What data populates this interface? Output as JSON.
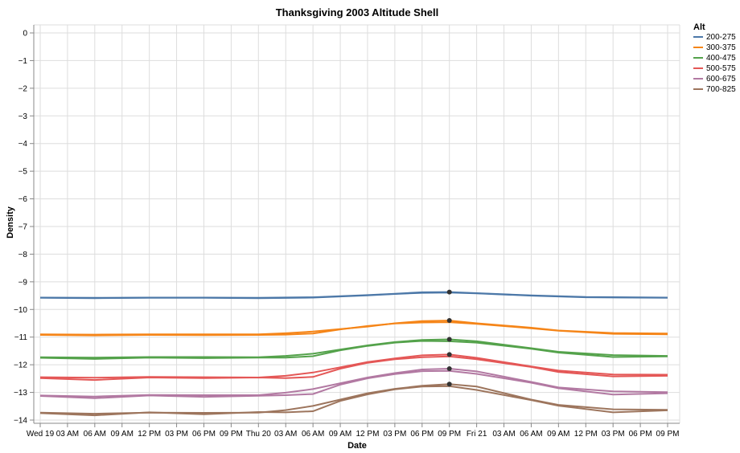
{
  "chart_data": {
    "type": "line",
    "title": "Thanksgiving 2003 Altitude Shell",
    "xlabel": "Date",
    "ylabel": "Density",
    "ylim": [
      -14,
      0
    ],
    "yticks": [
      0,
      -1,
      -2,
      -3,
      -4,
      -5,
      -6,
      -7,
      -8,
      -9,
      -10,
      -11,
      -12,
      -13,
      -14
    ],
    "xlim": [
      "2003-11-19 00:00",
      "2003-11-21 21:00"
    ],
    "xticks": [
      {
        "t": "2003-11-19 00:00",
        "label": "Wed 19"
      },
      {
        "t": "2003-11-19 03:00",
        "label": "03 AM"
      },
      {
        "t": "2003-11-19 06:00",
        "label": "06 AM"
      },
      {
        "t": "2003-11-19 09:00",
        "label": "09 AM"
      },
      {
        "t": "2003-11-19 12:00",
        "label": "12 PM"
      },
      {
        "t": "2003-11-19 15:00",
        "label": "03 PM"
      },
      {
        "t": "2003-11-19 18:00",
        "label": "06 PM"
      },
      {
        "t": "2003-11-19 21:00",
        "label": "09 PM"
      },
      {
        "t": "2003-11-20 00:00",
        "label": "Thu 20"
      },
      {
        "t": "2003-11-20 03:00",
        "label": "03 AM"
      },
      {
        "t": "2003-11-20 06:00",
        "label": "06 AM"
      },
      {
        "t": "2003-11-20 09:00",
        "label": "09 AM"
      },
      {
        "t": "2003-11-20 12:00",
        "label": "12 PM"
      },
      {
        "t": "2003-11-20 15:00",
        "label": "03 PM"
      },
      {
        "t": "2003-11-20 18:00",
        "label": "06 PM"
      },
      {
        "t": "2003-11-20 21:00",
        "label": "09 PM"
      },
      {
        "t": "2003-11-21 00:00",
        "label": "Fri 21"
      },
      {
        "t": "2003-11-21 03:00",
        "label": "03 AM"
      },
      {
        "t": "2003-11-21 06:00",
        "label": "06 AM"
      },
      {
        "t": "2003-11-21 09:00",
        "label": "09 AM"
      },
      {
        "t": "2003-11-21 12:00",
        "label": "12 PM"
      },
      {
        "t": "2003-11-21 15:00",
        "label": "03 PM"
      },
      {
        "t": "2003-11-21 18:00",
        "label": "06 PM"
      },
      {
        "t": "2003-11-21 21:00",
        "label": "09 PM"
      }
    ],
    "grid": true,
    "legend": {
      "title": "Alt",
      "placement": "top-right"
    },
    "highlight_time": "2003-11-20 21:00",
    "series": [
      {
        "name": "200-275",
        "color": "#4c78a8",
        "lines": [
          [
            [
              "2003-11-19 00:00",
              -9.57
            ],
            [
              "2003-11-19 06:00",
              -9.58
            ],
            [
              "2003-11-19 12:00",
              -9.57
            ],
            [
              "2003-11-19 18:00",
              -9.57
            ],
            [
              "2003-11-20 00:00",
              -9.58
            ],
            [
              "2003-11-20 06:00",
              -9.56
            ],
            [
              "2003-11-20 12:00",
              -9.48
            ],
            [
              "2003-11-20 15:00",
              -9.43
            ],
            [
              "2003-11-20 18:00",
              -9.38
            ],
            [
              "2003-11-20 21:00",
              -9.37
            ],
            [
              "2003-11-21 00:00",
              -9.41
            ],
            [
              "2003-11-21 06:00",
              -9.49
            ],
            [
              "2003-11-21 12:00",
              -9.55
            ],
            [
              "2003-11-21 21:00",
              -9.57
            ]
          ],
          [
            [
              "2003-11-19 00:00",
              -9.58
            ],
            [
              "2003-11-19 06:00",
              -9.59
            ],
            [
              "2003-11-19 12:00",
              -9.58
            ],
            [
              "2003-11-19 18:00",
              -9.58
            ],
            [
              "2003-11-20 00:00",
              -9.59
            ],
            [
              "2003-11-20 06:00",
              -9.57
            ],
            [
              "2003-11-20 12:00",
              -9.49
            ],
            [
              "2003-11-20 15:00",
              -9.44
            ],
            [
              "2003-11-20 18:00",
              -9.4
            ],
            [
              "2003-11-20 21:00",
              -9.39
            ],
            [
              "2003-11-21 00:00",
              -9.42
            ],
            [
              "2003-11-21 06:00",
              -9.5
            ],
            [
              "2003-11-21 12:00",
              -9.56
            ],
            [
              "2003-11-21 21:00",
              -9.58
            ]
          ]
        ],
        "highlight": -9.37
      },
      {
        "name": "300-375",
        "color": "#f58518",
        "lines": [
          [
            [
              "2003-11-19 00:00",
              -10.9
            ],
            [
              "2003-11-19 06:00",
              -10.91
            ],
            [
              "2003-11-19 12:00",
              -10.9
            ],
            [
              "2003-11-19 18:00",
              -10.9
            ],
            [
              "2003-11-20 00:00",
              -10.9
            ],
            [
              "2003-11-20 03:00",
              -10.86
            ],
            [
              "2003-11-20 06:00",
              -10.8
            ],
            [
              "2003-11-20 12:00",
              -10.62
            ],
            [
              "2003-11-20 15:00",
              -10.5
            ],
            [
              "2003-11-20 18:00",
              -10.42
            ],
            [
              "2003-11-20 21:00",
              -10.4
            ],
            [
              "2003-11-21 00:00",
              -10.5
            ],
            [
              "2003-11-21 06:00",
              -10.66
            ],
            [
              "2003-11-21 09:00",
              -10.76
            ],
            [
              "2003-11-21 15:00",
              -10.85
            ],
            [
              "2003-11-21 21:00",
              -10.87
            ]
          ],
          [
            [
              "2003-11-19 00:00",
              -10.92
            ],
            [
              "2003-11-19 06:00",
              -10.94
            ],
            [
              "2003-11-19 12:00",
              -10.92
            ],
            [
              "2003-11-19 18:00",
              -10.93
            ],
            [
              "2003-11-20 00:00",
              -10.92
            ],
            [
              "2003-11-20 03:00",
              -10.91
            ],
            [
              "2003-11-20 06:00",
              -10.87
            ],
            [
              "2003-11-20 09:00",
              -10.72
            ],
            [
              "2003-11-20 12:00",
              -10.6
            ],
            [
              "2003-11-20 15:00",
              -10.51
            ],
            [
              "2003-11-20 18:00",
              -10.47
            ],
            [
              "2003-11-20 21:00",
              -10.46
            ],
            [
              "2003-11-21 00:00",
              -10.52
            ],
            [
              "2003-11-21 06:00",
              -10.68
            ],
            [
              "2003-11-21 09:00",
              -10.77
            ],
            [
              "2003-11-21 15:00",
              -10.88
            ],
            [
              "2003-11-21 21:00",
              -10.9
            ]
          ]
        ],
        "highlight": -10.4
      },
      {
        "name": "400-475",
        "color": "#54a24b",
        "lines": [
          [
            [
              "2003-11-19 00:00",
              -11.73
            ],
            [
              "2003-11-19 06:00",
              -11.74
            ],
            [
              "2003-11-19 12:00",
              -11.72
            ],
            [
              "2003-11-19 18:00",
              -11.72
            ],
            [
              "2003-11-20 00:00",
              -11.73
            ],
            [
              "2003-11-20 03:00",
              -11.68
            ],
            [
              "2003-11-20 06:00",
              -11.6
            ],
            [
              "2003-11-20 12:00",
              -11.3
            ],
            [
              "2003-11-20 15:00",
              -11.18
            ],
            [
              "2003-11-20 18:00",
              -11.1
            ],
            [
              "2003-11-20 21:00",
              -11.08
            ],
            [
              "2003-11-21 00:00",
              -11.15
            ],
            [
              "2003-11-21 06:00",
              -11.4
            ],
            [
              "2003-11-21 09:00",
              -11.53
            ],
            [
              "2003-11-21 15:00",
              -11.65
            ],
            [
              "2003-11-21 21:00",
              -11.68
            ]
          ],
          [
            [
              "2003-11-19 00:00",
              -11.75
            ],
            [
              "2003-11-19 06:00",
              -11.79
            ],
            [
              "2003-11-19 12:00",
              -11.74
            ],
            [
              "2003-11-19 18:00",
              -11.76
            ],
            [
              "2003-11-20 00:00",
              -11.74
            ],
            [
              "2003-11-20 03:00",
              -11.74
            ],
            [
              "2003-11-20 06:00",
              -11.69
            ],
            [
              "2003-11-20 09:00",
              -11.48
            ],
            [
              "2003-11-20 12:00",
              -11.32
            ],
            [
              "2003-11-20 15:00",
              -11.2
            ],
            [
              "2003-11-20 18:00",
              -11.14
            ],
            [
              "2003-11-20 21:00",
              -11.15
            ],
            [
              "2003-11-21 00:00",
              -11.2
            ],
            [
              "2003-11-21 06:00",
              -11.42
            ],
            [
              "2003-11-21 09:00",
              -11.56
            ],
            [
              "2003-11-21 15:00",
              -11.72
            ],
            [
              "2003-11-21 21:00",
              -11.7
            ]
          ]
        ],
        "highlight": -11.08
      },
      {
        "name": "500-575",
        "color": "#e45756",
        "lines": [
          [
            [
              "2003-11-19 00:00",
              -12.45
            ],
            [
              "2003-11-19 06:00",
              -12.47
            ],
            [
              "2003-11-19 12:00",
              -12.44
            ],
            [
              "2003-11-19 18:00",
              -12.45
            ],
            [
              "2003-11-20 00:00",
              -12.46
            ],
            [
              "2003-11-20 03:00",
              -12.4
            ],
            [
              "2003-11-20 06:00",
              -12.28
            ],
            [
              "2003-11-20 12:00",
              -11.9
            ],
            [
              "2003-11-20 15:00",
              -11.77
            ],
            [
              "2003-11-20 18:00",
              -11.66
            ],
            [
              "2003-11-20 21:00",
              -11.63
            ],
            [
              "2003-11-21 00:00",
              -11.75
            ],
            [
              "2003-11-21 06:00",
              -12.06
            ],
            [
              "2003-11-21 09:00",
              -12.21
            ],
            [
              "2003-11-21 15:00",
              -12.35
            ],
            [
              "2003-11-21 21:00",
              -12.36
            ]
          ],
          [
            [
              "2003-11-19 00:00",
              -12.48
            ],
            [
              "2003-11-19 06:00",
              -12.55
            ],
            [
              "2003-11-19 12:00",
              -12.46
            ],
            [
              "2003-11-19 18:00",
              -12.48
            ],
            [
              "2003-11-20 00:00",
              -12.46
            ],
            [
              "2003-11-20 03:00",
              -12.48
            ],
            [
              "2003-11-20 06:00",
              -12.44
            ],
            [
              "2003-11-20 09:00",
              -12.14
            ],
            [
              "2003-11-20 12:00",
              -11.93
            ],
            [
              "2003-11-20 15:00",
              -11.8
            ],
            [
              "2003-11-20 18:00",
              -11.73
            ],
            [
              "2003-11-20 21:00",
              -11.7
            ],
            [
              "2003-11-21 00:00",
              -11.8
            ],
            [
              "2003-11-21 06:00",
              -12.08
            ],
            [
              "2003-11-21 09:00",
              -12.26
            ],
            [
              "2003-11-21 15:00",
              -12.42
            ],
            [
              "2003-11-21 21:00",
              -12.4
            ]
          ]
        ],
        "highlight": -11.63
      },
      {
        "name": "600-675",
        "color": "#b279a2",
        "lines": [
          [
            [
              "2003-11-19 00:00",
              -13.11
            ],
            [
              "2003-11-19 06:00",
              -13.15
            ],
            [
              "2003-11-19 12:00",
              -13.09
            ],
            [
              "2003-11-19 18:00",
              -13.1
            ],
            [
              "2003-11-20 00:00",
              -13.1
            ],
            [
              "2003-11-20 03:00",
              -13.01
            ],
            [
              "2003-11-20 06:00",
              -12.88
            ],
            [
              "2003-11-20 12:00",
              -12.46
            ],
            [
              "2003-11-20 15:00",
              -12.3
            ],
            [
              "2003-11-20 18:00",
              -12.17
            ],
            [
              "2003-11-20 21:00",
              -12.14
            ],
            [
              "2003-11-21 00:00",
              -12.24
            ],
            [
              "2003-11-21 06:00",
              -12.62
            ],
            [
              "2003-11-21 09:00",
              -12.82
            ],
            [
              "2003-11-21 15:00",
              -12.96
            ],
            [
              "2003-11-21 21:00",
              -12.99
            ]
          ],
          [
            [
              "2003-11-19 00:00",
              -13.13
            ],
            [
              "2003-11-19 06:00",
              -13.21
            ],
            [
              "2003-11-19 12:00",
              -13.11
            ],
            [
              "2003-11-19 18:00",
              -13.16
            ],
            [
              "2003-11-20 00:00",
              -13.12
            ],
            [
              "2003-11-20 03:00",
              -13.1
            ],
            [
              "2003-11-20 06:00",
              -13.06
            ],
            [
              "2003-11-20 09:00",
              -12.72
            ],
            [
              "2003-11-20 12:00",
              -12.49
            ],
            [
              "2003-11-20 15:00",
              -12.34
            ],
            [
              "2003-11-20 18:00",
              -12.23
            ],
            [
              "2003-11-20 21:00",
              -12.22
            ],
            [
              "2003-11-21 00:00",
              -12.33
            ],
            [
              "2003-11-21 06:00",
              -12.65
            ],
            [
              "2003-11-21 09:00",
              -12.85
            ],
            [
              "2003-11-21 15:00",
              -13.08
            ],
            [
              "2003-11-21 21:00",
              -13.03
            ]
          ]
        ],
        "highlight": -12.14
      },
      {
        "name": "700-825",
        "color": "#9d755d",
        "lines": [
          [
            [
              "2003-11-19 00:00",
              -13.73
            ],
            [
              "2003-11-19 06:00",
              -13.77
            ],
            [
              "2003-11-19 12:00",
              -13.73
            ],
            [
              "2003-11-19 18:00",
              -13.74
            ],
            [
              "2003-11-20 00:00",
              -13.73
            ],
            [
              "2003-11-20 03:00",
              -13.64
            ],
            [
              "2003-11-20 06:00",
              -13.49
            ],
            [
              "2003-11-20 12:00",
              -13.03
            ],
            [
              "2003-11-20 15:00",
              -12.87
            ],
            [
              "2003-11-20 18:00",
              -12.76
            ],
            [
              "2003-11-20 21:00",
              -12.7
            ],
            [
              "2003-11-21 00:00",
              -12.79
            ],
            [
              "2003-11-21 06:00",
              -13.26
            ],
            [
              "2003-11-21 09:00",
              -13.45
            ],
            [
              "2003-11-21 15:00",
              -13.61
            ],
            [
              "2003-11-21 21:00",
              -13.63
            ]
          ],
          [
            [
              "2003-11-19 00:00",
              -13.75
            ],
            [
              "2003-11-19 06:00",
              -13.83
            ],
            [
              "2003-11-19 12:00",
              -13.72
            ],
            [
              "2003-11-19 18:00",
              -13.79
            ],
            [
              "2003-11-20 00:00",
              -13.71
            ],
            [
              "2003-11-20 03:00",
              -13.72
            ],
            [
              "2003-11-20 06:00",
              -13.68
            ],
            [
              "2003-11-20 09:00",
              -13.31
            ],
            [
              "2003-11-20 12:00",
              -13.07
            ],
            [
              "2003-11-20 15:00",
              -12.89
            ],
            [
              "2003-11-20 18:00",
              -12.79
            ],
            [
              "2003-11-20 21:00",
              -12.77
            ],
            [
              "2003-11-21 00:00",
              -12.91
            ],
            [
              "2003-11-21 06:00",
              -13.28
            ],
            [
              "2003-11-21 09:00",
              -13.48
            ],
            [
              "2003-11-21 15:00",
              -13.72
            ],
            [
              "2003-11-21 21:00",
              -13.65
            ]
          ]
        ],
        "highlight": -12.7
      }
    ]
  }
}
